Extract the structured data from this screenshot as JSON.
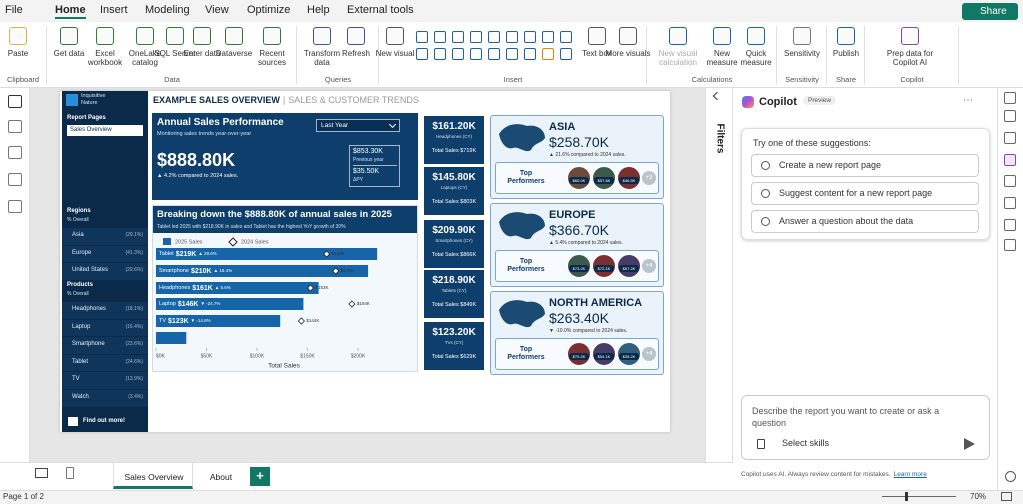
{
  "menu": {
    "tabs": [
      "File",
      "Home",
      "Insert",
      "Modeling",
      "View",
      "Optimize",
      "Help",
      "External tools"
    ],
    "share": "Share"
  },
  "ribbon": {
    "groups": [
      {
        "label": "Clipboard",
        "buttons": [
          "Paste"
        ]
      },
      {
        "label": "Data",
        "buttons": [
          "Get data",
          "Excel workbook",
          "OneLake catalog",
          "SQL Server",
          "Enter data",
          "Dataverse",
          "Recent sources"
        ]
      },
      {
        "label": "Queries",
        "buttons": [
          "Transform data",
          "Refresh"
        ]
      },
      {
        "label": "Insert",
        "buttons": [
          "New visual",
          "Text box",
          "More visuals"
        ]
      },
      {
        "label": "Calculations",
        "buttons": [
          "New visual calculation",
          "New measure",
          "Quick measure"
        ]
      },
      {
        "label": "Sensitivity",
        "buttons": [
          "Sensitivity"
        ]
      },
      {
        "label": "Share",
        "buttons": [
          "Publish"
        ]
      },
      {
        "label": "Copilot",
        "buttons": [
          "Prep data for Copilot AI"
        ]
      }
    ]
  },
  "report": {
    "logo": "Inquisitive Nature",
    "nav": {
      "pages_title": "Report Pages",
      "current_page": "Sales Overview",
      "regions_title": "Regions",
      "regions_sub": "% Overall",
      "regions": [
        {
          "name": "Asia",
          "pct": "(29.1%)"
        },
        {
          "name": "Europe",
          "pct": "(41.3%)"
        },
        {
          "name": "United States",
          "pct": "(29.6%)"
        }
      ],
      "products_title": "Products",
      "products_sub": "% Overall",
      "products": [
        {
          "name": "Headphones",
          "pct": "(18.1%)"
        },
        {
          "name": "Laptop",
          "pct": "(16.4%)"
        },
        {
          "name": "Smartphone",
          "pct": "(23.6%)"
        },
        {
          "name": "Tablet",
          "pct": "(24.6%)"
        },
        {
          "name": "TV",
          "pct": "(13.9%)"
        },
        {
          "name": "Watch",
          "pct": "(3.4%)"
        }
      ],
      "cta": "Find out more!"
    },
    "title": "EXAMPLE SALES OVERVIEW",
    "title_sep": "|",
    "subtitle": "SALES & CUSTOMER TRENDS",
    "annual": {
      "title": "Annual Sales Performance",
      "subtitle": "Monitoring sales trends year-over-year",
      "filter": "Last Year",
      "value": "$888.80K",
      "change": "▲ 4.2% compared to 2024 sales.",
      "previous_value": "$853.30K",
      "previous_label": "Previous year",
      "delta_value": "$35.50K",
      "delta_label": "ΔPY"
    },
    "bar_chart": {
      "type": "bar",
      "title": "Breaking down the $888.80K of annual sales in 2025",
      "subtitle": "Tablet led 2025 with $218.90K in sales and Tablet has the highest YoY growth of 30%",
      "categories": [
        "Tablet",
        "Smartphone",
        "Headphones",
        "Laptop",
        "TV",
        null
      ],
      "series": [
        {
          "name": "2025 Sales",
          "color": "#1565a8",
          "values": [
            219,
            210,
            161,
            146,
            123,
            30
          ],
          "value_labels": [
            "$219K",
            "$210K",
            "$161K",
            "$146K",
            "$123K",
            null
          ],
          "changes": [
            "▲ 29.6%",
            "▲ 18.4%",
            "▲ 5.6%",
            "▼ -24.7%",
            "▼ -14.8%",
            null
          ]
        },
        {
          "name": "2024 Sales",
          "color": "#222222",
          "values": [
            169,
            178,
            153,
            194,
            144,
            null
          ],
          "value_labels": [
            "$169K",
            "$178K",
            "$153K",
            "$194K",
            "$144K",
            null
          ]
        }
      ],
      "xlim": [
        0,
        255
      ],
      "xticks": [
        {
          "value": 0,
          "label": "$0K"
        },
        {
          "value": 50,
          "label": "$50K"
        },
        {
          "value": 100,
          "label": "$100K"
        },
        {
          "value": 150,
          "label": "$150K"
        },
        {
          "value": 200,
          "label": "$200K"
        }
      ],
      "xlabel": "Total Sales"
    },
    "product_cards": [
      {
        "value": "$161.20K",
        "label": "Headphones (CY)",
        "total": "Total Sales $719K"
      },
      {
        "value": "$145.80K",
        "label": "Laptops (CY)",
        "total": "Total Sales $803K"
      },
      {
        "value": "$209.90K",
        "label": "Smartphones (CY)",
        "total": "Total Sales $866K"
      },
      {
        "value": "$218.90K",
        "label": "Tablets (CY)",
        "total": "Total Sales $849K"
      },
      {
        "value": "$123.20K",
        "label": "TVs (CY)",
        "total": "Total Sales $629K"
      }
    ],
    "region_cards": [
      {
        "name": "ASIA",
        "value": "$258.70K",
        "change": "▲ 21.6% compared to 2024 sales.",
        "top_label": "Top Performers",
        "performers": [
          "$60.0K",
          "$57.6K",
          "$46.5K"
        ],
        "more": "+3"
      },
      {
        "name": "EUROPE",
        "value": "$366.70K",
        "change": "▲ 5.4% compared to 2024 sales.",
        "top_label": "Top Performers",
        "performers": [
          "$73.2K",
          "$72.1K",
          "$67.2K"
        ],
        "more": "+4"
      },
      {
        "name": "NORTH AMERICA",
        "value": "$263.40K",
        "change": "▼ -10.0% compared to 2024 sales.",
        "top_label": "Top Performers",
        "performers": [
          "$70.2K",
          "$54.1K",
          "$35.2K"
        ],
        "more": "+4"
      }
    ]
  },
  "filters": {
    "label": "Filters"
  },
  "copilot": {
    "title": "Copilot",
    "badge": "Preview",
    "prompt": "Try one of these suggestions:",
    "suggestions": [
      "Create a new report page",
      "Suggest content for a new report page",
      "Answer a question about the data"
    ],
    "input_placeholder": "Describe the report you want to create or ask a question",
    "skills": "Select skills",
    "disclaimer": "Copilot uses AI. Always review content for mistakes.",
    "learn_more": "Learn more"
  },
  "footer": {
    "tabs": [
      "Sales Overview",
      "About"
    ],
    "add": "+",
    "status": "Page 1 of 2",
    "zoom": "70%"
  }
}
